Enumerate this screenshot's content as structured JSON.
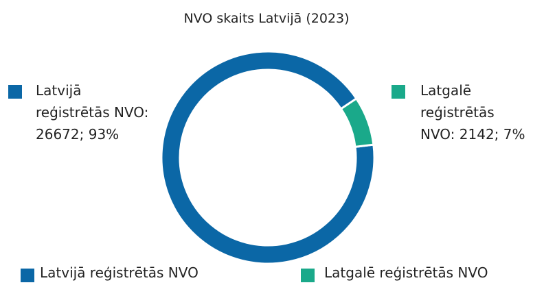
{
  "chart_data": {
    "type": "donut",
    "title": "NVO skaits Latvijā (2023)",
    "categories": [
      "Latvijā reģistrētās NVO",
      "Latgalē reģistrētās NVO"
    ],
    "values": [
      26672,
      2142
    ],
    "value_labels": [
      "Latvijā reģistrētās NVO: 26672; 93%",
      "Latgalē reģistrētās NVO: 2142; 7%"
    ],
    "colors": [
      "#0b67a6",
      "#1aa98a"
    ],
    "legend": "bottom"
  }
}
